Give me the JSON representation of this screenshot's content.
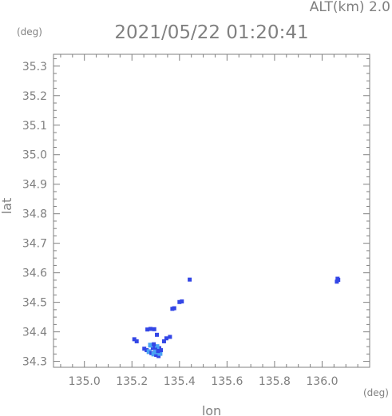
{
  "header": {
    "altitude_label": "ALT(km) 2.0",
    "timestamp": "2021/05/22 01:20:41"
  },
  "chart_data": {
    "type": "scatter",
    "xlabel": "lon",
    "ylabel": "lat",
    "x_unit": "(deg)",
    "y_unit": "(deg)",
    "xlim": [
      134.87,
      136.2
    ],
    "ylim": [
      34.28,
      35.34
    ],
    "xticks": [
      135.0,
      135.2,
      135.4,
      135.6,
      135.8,
      136.0
    ],
    "xtick_labels": [
      "135.0",
      "135.2",
      "135.4",
      "135.6",
      "135.8",
      "136.0"
    ],
    "yticks": [
      34.3,
      34.4,
      34.5,
      34.6,
      34.7,
      34.8,
      34.9,
      35.0,
      35.1,
      35.2,
      35.3
    ],
    "ytick_labels": [
      "34.3",
      "34.4",
      "34.5",
      "34.6",
      "34.7",
      "34.8",
      "34.9",
      "35.0",
      "35.1",
      "35.2",
      "35.3"
    ],
    "grid": false,
    "colors": {
      "axis": "#808080",
      "echo_strong": "#3346e6",
      "echo_light": "#4aa3f2"
    },
    "points": [
      {
        "lon": 135.21,
        "lat": 34.375,
        "level": "strong"
      },
      {
        "lon": 135.22,
        "lat": 34.368,
        "level": "strong"
      },
      {
        "lon": 135.252,
        "lat": 34.343,
        "level": "strong"
      },
      {
        "lon": 135.262,
        "lat": 34.338,
        "level": "strong"
      },
      {
        "lon": 135.272,
        "lat": 34.333,
        "level": "light"
      },
      {
        "lon": 135.282,
        "lat": 34.328,
        "level": "strong"
      },
      {
        "lon": 135.292,
        "lat": 34.325,
        "level": "light"
      },
      {
        "lon": 135.302,
        "lat": 34.322,
        "level": "strong"
      },
      {
        "lon": 135.312,
        "lat": 34.318,
        "level": "strong"
      },
      {
        "lon": 135.318,
        "lat": 34.327,
        "level": "light"
      },
      {
        "lon": 135.322,
        "lat": 34.338,
        "level": "strong"
      },
      {
        "lon": 135.315,
        "lat": 34.345,
        "level": "strong"
      },
      {
        "lon": 135.305,
        "lat": 34.35,
        "level": "light"
      },
      {
        "lon": 135.298,
        "lat": 34.34,
        "level": "strong"
      },
      {
        "lon": 135.288,
        "lat": 34.345,
        "level": "strong"
      },
      {
        "lon": 135.278,
        "lat": 34.355,
        "level": "light"
      },
      {
        "lon": 135.292,
        "lat": 34.358,
        "level": "strong"
      },
      {
        "lon": 135.3,
        "lat": 34.332,
        "level": "light"
      },
      {
        "lon": 135.31,
        "lat": 34.335,
        "level": "strong"
      },
      {
        "lon": 135.265,
        "lat": 34.408,
        "level": "strong"
      },
      {
        "lon": 135.278,
        "lat": 34.41,
        "level": "strong"
      },
      {
        "lon": 135.294,
        "lat": 34.409,
        "level": "strong"
      },
      {
        "lon": 135.305,
        "lat": 34.39,
        "level": "strong"
      },
      {
        "lon": 135.335,
        "lat": 34.368,
        "level": "strong"
      },
      {
        "lon": 135.345,
        "lat": 34.378,
        "level": "strong"
      },
      {
        "lon": 135.36,
        "lat": 34.383,
        "level": "strong"
      },
      {
        "lon": 135.37,
        "lat": 34.478,
        "level": "strong"
      },
      {
        "lon": 135.378,
        "lat": 34.48,
        "level": "strong"
      },
      {
        "lon": 135.4,
        "lat": 34.501,
        "level": "strong"
      },
      {
        "lon": 135.41,
        "lat": 34.503,
        "level": "strong"
      },
      {
        "lon": 135.443,
        "lat": 34.577,
        "level": "strong"
      },
      {
        "lon": 136.062,
        "lat": 34.57,
        "level": "strong"
      },
      {
        "lon": 136.068,
        "lat": 34.576,
        "level": "strong"
      },
      {
        "lon": 136.065,
        "lat": 34.58,
        "level": "strong"
      }
    ]
  }
}
